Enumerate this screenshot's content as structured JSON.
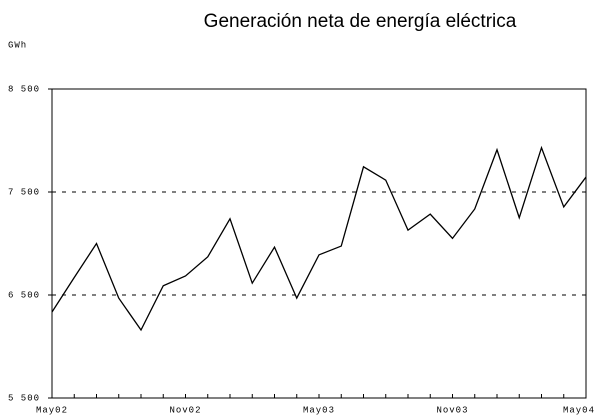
{
  "chart_data": {
    "type": "line",
    "title": "Generación neta de energía eléctrica",
    "y_label": "GWh",
    "categories": [
      "May02",
      null,
      null,
      null,
      null,
      null,
      "Nov02",
      null,
      null,
      null,
      null,
      null,
      "May03",
      null,
      null,
      null,
      null,
      null,
      "Nov03",
      null,
      null,
      null,
      null,
      null,
      "May04"
    ],
    "series": [
      {
        "name": "Generación neta",
        "color": "#000000",
        "values": [
          6335,
          6670,
          7000,
          6470,
          6160,
          6590,
          6685,
          6870,
          7240,
          6615,
          6965,
          6470,
          6890,
          6975,
          7745,
          7615,
          7130,
          7285,
          7050,
          7335,
          7910,
          7250,
          7930,
          7355,
          7645
        ]
      }
    ],
    "ylim": [
      5500,
      8500
    ],
    "yticks": [
      {
        "value": 5500,
        "label": "5 500"
      },
      {
        "value": 6500,
        "label": "6 500"
      },
      {
        "value": 7500,
        "label": "7 500"
      },
      {
        "value": 8500,
        "label": "8 500"
      }
    ],
    "grid": true
  }
}
